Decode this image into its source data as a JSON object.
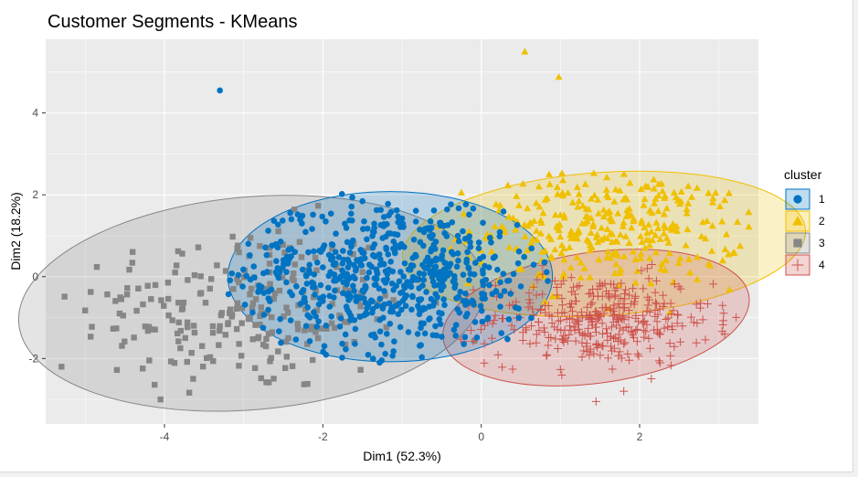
{
  "chart_data": {
    "type": "scatter",
    "title": "Customer Segments - KMeans",
    "xlabel": "Dim1 (52.3%)",
    "ylabel": "Dim2 (18.2%)",
    "xlim": [
      -5.5,
      3.5
    ],
    "ylim": [
      -3.6,
      5.8
    ],
    "x_ticks": [
      -4,
      -2,
      0,
      2
    ],
    "x_tick_labels": [
      "-4",
      "-2",
      "0",
      "2"
    ],
    "y_ticks": [
      -2,
      0,
      2,
      4
    ],
    "y_tick_labels": [
      "-2",
      "0",
      "2",
      "4"
    ],
    "grid": true,
    "legend": {
      "title": "cluster",
      "position": "right"
    },
    "series": [
      {
        "name": "1",
        "color": "#0073C2",
        "marker": "circle",
        "ellipse": {
          "cx": -1.15,
          "cy": 0.0,
          "rx": 2.05,
          "ry": 2.08,
          "angle": 0
        },
        "outliers": [
          {
            "x": -3.3,
            "y": 4.55
          }
        ],
        "cloud": {
          "n": 620,
          "sx": 1.0,
          "sy": 0.95,
          "cx": -1.15,
          "cy": 0.05
        }
      },
      {
        "name": "2",
        "color": "#EFC000",
        "marker": "triangle",
        "ellipse": {
          "cx": 1.55,
          "cy": 0.8,
          "rx": 2.55,
          "ry": 1.75,
          "angle": -4
        },
        "outliers": [
          {
            "x": 0.55,
            "y": 5.5
          },
          {
            "x": 0.98,
            "y": 4.88
          }
        ],
        "cloud": {
          "n": 330,
          "sx": 0.85,
          "sy": 0.72,
          "cx": 1.6,
          "cy": 1.2
        }
      },
      {
        "name": "3",
        "color": "#868686",
        "marker": "square",
        "ellipse": {
          "cx": -2.9,
          "cy": -0.65,
          "rx": 2.95,
          "ry": 2.6,
          "angle": -5
        },
        "outliers": [
          {
            "x": -4.05,
            "y": -3.0
          },
          {
            "x": -5.3,
            "y": -2.2
          }
        ],
        "cloud": {
          "n": 240,
          "sx": 1.05,
          "sy": 1.05,
          "cx": -3.0,
          "cy": -0.8
        }
      },
      {
        "name": "4",
        "color": "#CD534C",
        "marker": "cross",
        "ellipse": {
          "cx": 1.45,
          "cy": -1.0,
          "rx": 1.95,
          "ry": 1.6,
          "angle": -8
        },
        "outliers": [
          {
            "x": 1.45,
            "y": -3.05
          },
          {
            "x": 1.8,
            "y": -2.8
          }
        ],
        "cloud": {
          "n": 360,
          "sx": 0.7,
          "sy": 0.55,
          "cx": 1.5,
          "cy": -1.05
        }
      }
    ]
  }
}
